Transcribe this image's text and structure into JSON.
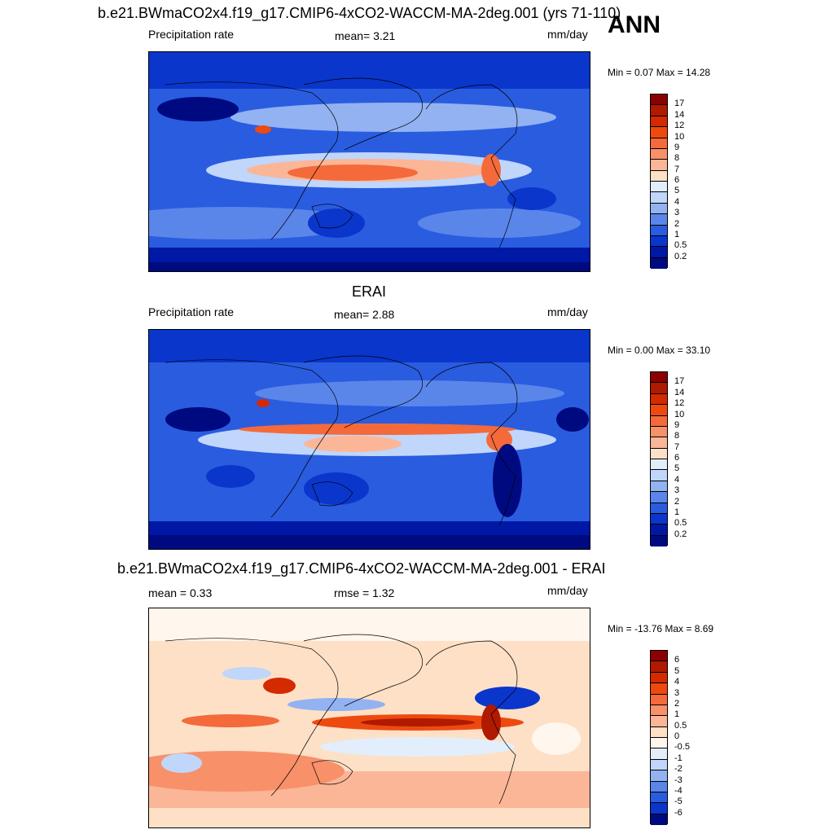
{
  "season": "ANN",
  "panels": [
    {
      "title": "b.e21.BWmaCO2x4.f19_g17.CMIP6-4xCO2-WACCM-MA-2deg.001 (yrs 71-110)",
      "left_label": "Precipitation rate",
      "center_label": "mean=   3.21",
      "units": "mm/day",
      "minmax": "Min =   0.07 Max =  14.28",
      "palette": "precip",
      "levels": [
        "17",
        "14",
        "12",
        "10",
        "9",
        "8",
        "7",
        "6",
        "5",
        "4",
        "3",
        "2",
        "1",
        "0.5",
        "0.2"
      ]
    },
    {
      "title": "ERAI",
      "left_label": "Precipitation rate",
      "center_label": "mean=   2.88",
      "units": "mm/day",
      "minmax": "Min =   0.00 Max =  33.10",
      "palette": "precip",
      "levels": [
        "17",
        "14",
        "12",
        "10",
        "9",
        "8",
        "7",
        "6",
        "5",
        "4",
        "3",
        "2",
        "1",
        "0.5",
        "0.2"
      ]
    },
    {
      "title": "b.e21.BWmaCO2x4.f19_g17.CMIP6-4xCO2-WACCM-MA-2deg.001 - ERAI",
      "left_label": "mean =   0.33",
      "center_label": "rmse =   1.32",
      "units": "mm/day",
      "minmax": "Min = -13.76 Max =   8.69",
      "palette": "diff",
      "levels": [
        "6",
        "5",
        "4",
        "3",
        "2",
        "1",
        "0.5",
        "0",
        "-0.5",
        "-1",
        "-2",
        "-3",
        "-4",
        "-5",
        "-6"
      ]
    }
  ],
  "colors": {
    "precip": [
      "#8b0000",
      "#b01a00",
      "#d42a00",
      "#ee4a10",
      "#f46a3a",
      "#f8906a",
      "#fbb698",
      "#fde0c6",
      "#e2eefc",
      "#c0d6fa",
      "#92b2f2",
      "#5a86ea",
      "#2a5ce0",
      "#0a36cc",
      "#0018a6",
      "#000a80"
    ],
    "diff": [
      "#8b0000",
      "#b01a00",
      "#d42a00",
      "#ee4a10",
      "#f46a3a",
      "#f8906a",
      "#fbb698",
      "#fde0c6",
      "#fff6ee",
      "#e2eefc",
      "#c0d6fa",
      "#92b2f2",
      "#5a86ea",
      "#2a5ce0",
      "#0a36cc",
      "#000a80"
    ]
  }
}
